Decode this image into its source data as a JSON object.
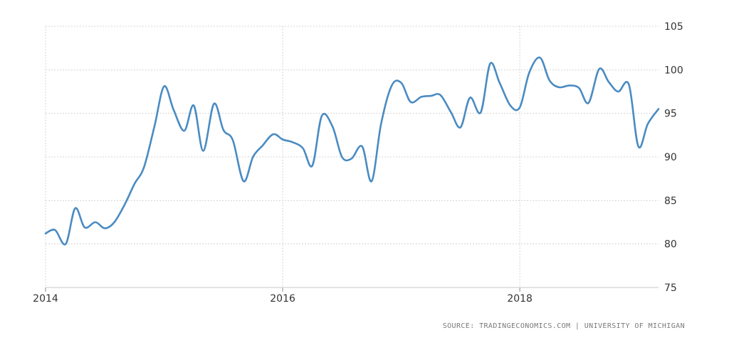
{
  "chart_data": {
    "type": "line",
    "title": "",
    "xlabel": "",
    "ylabel": "",
    "xlim": [
      2014,
      2019.17
    ],
    "ylim": [
      75,
      105
    ],
    "grid": true,
    "y_axis_side": "right",
    "yticks": [
      75,
      80,
      85,
      90,
      95,
      100,
      105
    ],
    "xticks": [
      2014,
      2016,
      2018
    ],
    "series": [
      {
        "color": "#4a8bc2",
        "x": [
          2014.0,
          2014.08,
          2014.17,
          2014.25,
          2014.33,
          2014.42,
          2014.5,
          2014.58,
          2014.67,
          2014.75,
          2014.83,
          2014.92,
          2015.0,
          2015.08,
          2015.17,
          2015.25,
          2015.33,
          2015.42,
          2015.5,
          2015.58,
          2015.67,
          2015.75,
          2015.83,
          2015.92,
          2016.0,
          2016.08,
          2016.17,
          2016.25,
          2016.33,
          2016.42,
          2016.5,
          2016.58,
          2016.67,
          2016.75,
          2016.83,
          2016.92,
          2017.0,
          2017.08,
          2017.17,
          2017.25,
          2017.33,
          2017.42,
          2017.5,
          2017.58,
          2017.67,
          2017.75,
          2017.83,
          2017.92,
          2018.0,
          2018.08,
          2018.17,
          2018.25,
          2018.33,
          2018.42,
          2018.5,
          2018.58,
          2018.67,
          2018.75,
          2018.83,
          2018.92,
          2019.0,
          2019.08,
          2019.17
        ],
        "y": [
          81.2,
          81.6,
          80.0,
          84.1,
          81.9,
          82.5,
          81.8,
          82.5,
          84.6,
          86.9,
          88.8,
          93.6,
          98.1,
          95.4,
          93.0,
          95.9,
          90.7,
          96.1,
          93.1,
          91.9,
          87.2,
          90.0,
          91.3,
          92.6,
          92.0,
          91.7,
          91.0,
          89.0,
          94.7,
          93.5,
          90.0,
          89.8,
          91.2,
          87.2,
          93.8,
          98.2,
          98.5,
          96.3,
          96.9,
          97.0,
          97.1,
          95.1,
          93.4,
          96.8,
          95.1,
          100.7,
          98.5,
          95.9,
          95.7,
          99.7,
          101.4,
          98.8,
          98.0,
          98.2,
          97.9,
          96.2,
          100.1,
          98.6,
          97.5,
          98.3,
          91.2,
          93.8,
          95.5
        ]
      }
    ]
  },
  "footer": {
    "source_text": "SOURCE: TRADINGECONOMICS.COM | UNIVERSITY OF MICHIGAN"
  }
}
